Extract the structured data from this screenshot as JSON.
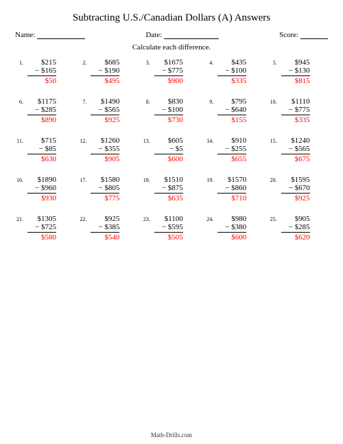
{
  "title": "Subtracting U.S./Canadian Dollars (A) Answers",
  "labels": {
    "name": "Name:",
    "date": "Date:",
    "score": "Score:",
    "instruction": "Calculate each difference."
  },
  "footer": "Math-Drills.com",
  "styling": {
    "answer_color": "#ff0000",
    "text_color": "#000000",
    "background_color": "#ffffff",
    "title_fontsize": 15,
    "body_fontsize": 11,
    "problem_number_fontsize": 8,
    "footer_fontsize": 9,
    "grid_columns": 5,
    "grid_rows": 5
  },
  "problems": [
    {
      "n": "1.",
      "top": "$215",
      "bot": "− $165",
      "ans": "$50"
    },
    {
      "n": "2.",
      "top": "$685",
      "bot": "− $190",
      "ans": "$495"
    },
    {
      "n": "3.",
      "top": "$1675",
      "bot": "− $775",
      "ans": "$900"
    },
    {
      "n": "4.",
      "top": "$435",
      "bot": "− $100",
      "ans": "$335"
    },
    {
      "n": "5.",
      "top": "$945",
      "bot": "− $130",
      "ans": "$815"
    },
    {
      "n": "6.",
      "top": "$1175",
      "bot": "− $285",
      "ans": "$890"
    },
    {
      "n": "7.",
      "top": "$1490",
      "bot": "− $565",
      "ans": "$925"
    },
    {
      "n": "8.",
      "top": "$830",
      "bot": "− $100",
      "ans": "$730"
    },
    {
      "n": "9.",
      "top": "$795",
      "bot": "− $640",
      "ans": "$155"
    },
    {
      "n": "10.",
      "top": "$1110",
      "bot": "− $775",
      "ans": "$335"
    },
    {
      "n": "11.",
      "top": "$715",
      "bot": "− $85",
      "ans": "$630"
    },
    {
      "n": "12.",
      "top": "$1260",
      "bot": "− $355",
      "ans": "$905"
    },
    {
      "n": "13.",
      "top": "$605",
      "bot": "− $5",
      "ans": "$600"
    },
    {
      "n": "14.",
      "top": "$910",
      "bot": "− $255",
      "ans": "$655"
    },
    {
      "n": "15.",
      "top": "$1240",
      "bot": "− $565",
      "ans": "$675"
    },
    {
      "n": "16.",
      "top": "$1890",
      "bot": "− $960",
      "ans": "$930"
    },
    {
      "n": "17.",
      "top": "$1580",
      "bot": "− $805",
      "ans": "$775"
    },
    {
      "n": "18.",
      "top": "$1510",
      "bot": "− $875",
      "ans": "$635"
    },
    {
      "n": "19.",
      "top": "$1570",
      "bot": "− $860",
      "ans": "$710"
    },
    {
      "n": "20.",
      "top": "$1595",
      "bot": "− $670",
      "ans": "$925"
    },
    {
      "n": "21.",
      "top": "$1305",
      "bot": "− $725",
      "ans": "$580"
    },
    {
      "n": "22.",
      "top": "$925",
      "bot": "− $385",
      "ans": "$540"
    },
    {
      "n": "23.",
      "top": "$1100",
      "bot": "− $595",
      "ans": "$505"
    },
    {
      "n": "24.",
      "top": "$980",
      "bot": "− $380",
      "ans": "$600"
    },
    {
      "n": "25.",
      "top": "$905",
      "bot": "− $285",
      "ans": "$620"
    }
  ]
}
